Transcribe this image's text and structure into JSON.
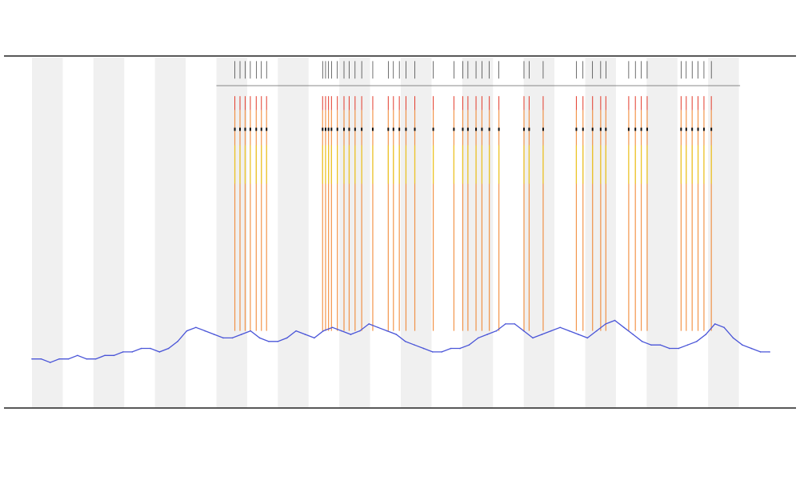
{
  "header": {
    "title": "",
    "subtitle_1": "",
    "subtitle_2": ""
  },
  "legend": {
    "placement": "top-left",
    "entries": []
  },
  "colors": {
    "band_fill": "#f0f0f0",
    "baseline_line": "#4a55d8",
    "spike_orange": "#f07a1e",
    "spike_red": "#e23a2a",
    "spike_yellow": "#e8d21a",
    "tick_black": "#111111",
    "frame": "#222222"
  },
  "chart_data": {
    "type": "line",
    "title": "",
    "xlabel": "",
    "ylabel": "",
    "grid": false,
    "alternating_bands": 24,
    "ylim": [
      0,
      100
    ],
    "series": [
      {
        "values": [
          14,
          14,
          13,
          14,
          14,
          15,
          14,
          14,
          15,
          15,
          16,
          16,
          17,
          17,
          16,
          17,
          19,
          22,
          23,
          22,
          21,
          20,
          20,
          21,
          22,
          20,
          19,
          19,
          20,
          22,
          21,
          20,
          22,
          23,
          22,
          21,
          22,
          24,
          23,
          22,
          21,
          19,
          18,
          17,
          16,
          16,
          17,
          17,
          18,
          20,
          21,
          22,
          24,
          24,
          22,
          20,
          21,
          22,
          23,
          22,
          21,
          20,
          22,
          24,
          25,
          23,
          21,
          19,
          18,
          18,
          17,
          17,
          18,
          19,
          21,
          24,
          23,
          20,
          18,
          17,
          16,
          16
        ]
      }
    ],
    "spike_positions": [
      27.5,
      28.2,
      28.9,
      29.6,
      30.4,
      31.1,
      31.8,
      39.4,
      39.8,
      40.2,
      40.6,
      41.4,
      42.3,
      43.0,
      43.8,
      44.7,
      46.2,
      48.3,
      49.0,
      49.8,
      50.7,
      51.9,
      54.4,
      57.2,
      58.4,
      59.1,
      60.2,
      61.0,
      62.0,
      63.3,
      66.7,
      67.4,
      69.3,
      73.8,
      74.7,
      76.0,
      77.1,
      77.8,
      80.9,
      81.8,
      82.6,
      83.4,
      88.0,
      88.7,
      89.5,
      90.3,
      91.1,
      92.1
    ]
  }
}
